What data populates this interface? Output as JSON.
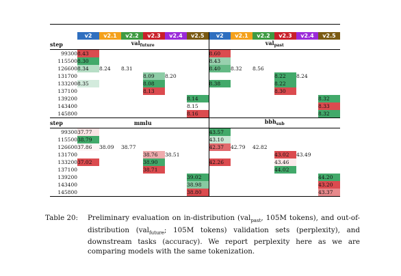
{
  "versions": [
    {
      "label": "v2",
      "color": "#2f6fbf"
    },
    {
      "label": "v2.1",
      "color": "#f4a11c"
    },
    {
      "label": "v2.2",
      "color": "#3e9a41"
    },
    {
      "label": "v2.3",
      "color": "#c9202a"
    },
    {
      "label": "v2.4",
      "color": "#9b2bd9"
    },
    {
      "label": "v2.5",
      "color": "#7a5a12"
    }
  ],
  "step_label": "step",
  "blocks": [
    {
      "left_title": "val",
      "left_sub": "future",
      "right_title": "val",
      "right_sub": "past",
      "rows": [
        {
          "step": "99300",
          "left": [
            "8.43",
            "",
            "",
            "",
            "",
            ""
          ],
          "right": [
            "8.60",
            "",
            "",
            "",
            "",
            ""
          ]
        },
        {
          "step": "115500",
          "left": [
            "8.30",
            "",
            "",
            "",
            "",
            ""
          ],
          "right": [
            "8.43",
            "",
            "",
            "",
            "",
            ""
          ]
        },
        {
          "step": "126600",
          "left": [
            "8.34",
            "8.24",
            "8.31",
            "",
            "",
            ""
          ],
          "right": [
            "8.40",
            "8.32",
            "8.56",
            "",
            "",
            ""
          ]
        },
        {
          "step": "131700",
          "left": [
            "",
            "",
            "",
            "8.09",
            "8.20",
            ""
          ],
          "right": [
            "",
            "",
            "",
            "8.22",
            "8.24",
            ""
          ]
        },
        {
          "step": "133200",
          "left": [
            "8.35",
            "",
            "",
            "8.08",
            "",
            ""
          ],
          "right": [
            "8.38",
            "",
            "",
            "8.22",
            "",
            ""
          ]
        },
        {
          "step": "137100",
          "left": [
            "",
            "",
            "",
            "8.13",
            "",
            ""
          ],
          "right": [
            "",
            "",
            "",
            "8.30",
            "",
            ""
          ]
        },
        {
          "step": "139200",
          "left": [
            "",
            "",
            "",
            "",
            "",
            "8.14"
          ],
          "right": [
            "",
            "",
            "",
            "",
            "",
            "8.32"
          ]
        },
        {
          "step": "143400",
          "left": [
            "",
            "",
            "",
            "",
            "",
            "8.15"
          ],
          "right": [
            "",
            "",
            "",
            "",
            "",
            "8.33"
          ]
        },
        {
          "step": "145800",
          "left": [
            "",
            "",
            "",
            "",
            "",
            "8.16"
          ],
          "right": [
            "",
            "",
            "",
            "",
            "",
            "8.32"
          ]
        }
      ]
    },
    {
      "left_title": "mmlu",
      "left_sub": "",
      "right_title": "bbh",
      "right_sub": "sub",
      "rows": [
        {
          "step": "99300",
          "left": [
            "37.77",
            "",
            "",
            "",
            "",
            ""
          ],
          "right": [
            "43.57",
            "",
            "",
            "",
            "",
            ""
          ]
        },
        {
          "step": "115500",
          "left": [
            "38.79",
            "",
            "",
            "",
            "",
            ""
          ],
          "right": [
            "43.10",
            "",
            "",
            "",
            "",
            ""
          ]
        },
        {
          "step": "126600",
          "left": [
            "37.86",
            "38.09",
            "38.77",
            "",
            "",
            ""
          ],
          "right": [
            "42.37",
            "42.79",
            "42.82",
            "",
            "",
            ""
          ]
        },
        {
          "step": "131700",
          "left": [
            "",
            "",
            "",
            "38.76",
            "38.51",
            ""
          ],
          "right": [
            "",
            "",
            "",
            "43.02",
            "43.49",
            ""
          ]
        },
        {
          "step": "133200",
          "left": [
            "37.02",
            "",
            "",
            "38.90",
            "",
            ""
          ],
          "right": [
            "42.26",
            "",
            "",
            "43.46",
            "",
            ""
          ]
        },
        {
          "step": "137100",
          "left": [
            "",
            "",
            "",
            "38.71",
            "",
            ""
          ],
          "right": [
            "",
            "",
            "",
            "44.02",
            "",
            ""
          ]
        },
        {
          "step": "139200",
          "left": [
            "",
            "",
            "",
            "",
            "",
            "39.02"
          ],
          "right": [
            "",
            "",
            "",
            "",
            "",
            "44.20"
          ]
        },
        {
          "step": "143400",
          "left": [
            "",
            "",
            "",
            "",
            "",
            "38.98"
          ],
          "right": [
            "",
            "",
            "",
            "",
            "",
            "43.20"
          ]
        },
        {
          "step": "145800",
          "left": [
            "",
            "",
            "",
            "",
            "",
            "38.80"
          ],
          "right": [
            "",
            "",
            "",
            "",
            "",
            "43.37"
          ]
        }
      ]
    }
  ],
  "caption": {
    "label": "Table 20:",
    "parts": [
      "Preliminary evaluation on in-distribution (val",
      "past",
      ", 105M tokens), and out-of-distribution (val",
      "future",
      "; 105M tokens) validation sets (perplexity), and downstream tasks (accuracy). We report perplexity here as we are comparing models with the same tokenization."
    ]
  }
}
